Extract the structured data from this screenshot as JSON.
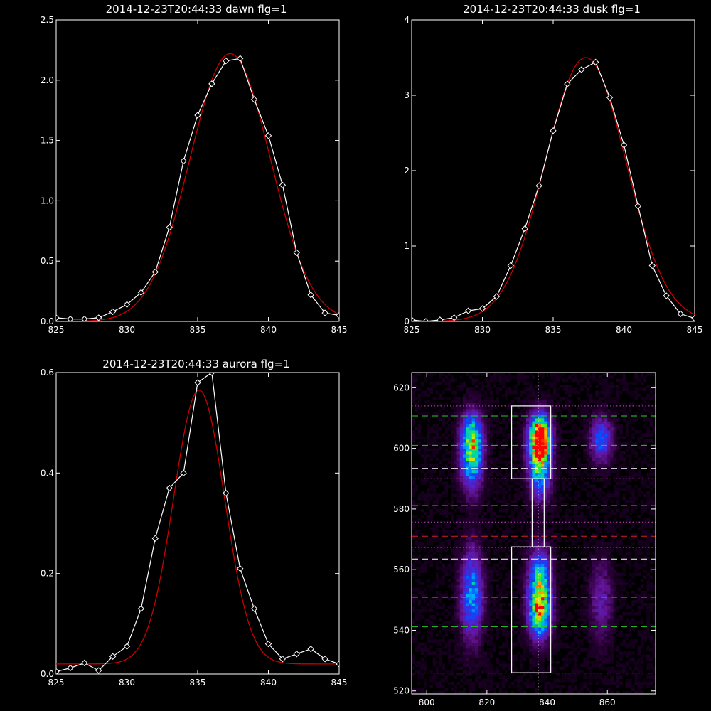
{
  "colors": {
    "background": "#000000",
    "axes": "#ffffff",
    "data_line": "#ffffff",
    "fit_line": "#cc0000",
    "green_dash": "#22cc22",
    "red_dash": "#cc2222",
    "white_dash": "#ffffff",
    "magenta_dot": "#cc44cc"
  },
  "chart_data": [
    {
      "id": "dawn",
      "type": "line",
      "title": "2014-12-23T20:44:33 dawn flg=1",
      "xlim": [
        825,
        845
      ],
      "ylim": [
        0,
        2.5
      ],
      "xticks": [
        "825",
        "830",
        "835",
        "840",
        "845"
      ],
      "yticks": [
        "0.0",
        "0.5",
        "1.0",
        "1.5",
        "2.0",
        "2.5"
      ],
      "series": [
        {
          "role": "data",
          "x": [
            825,
            826,
            827,
            828,
            829,
            830,
            831,
            832,
            833,
            834,
            835,
            836,
            837,
            838,
            839,
            840,
            841,
            842,
            843,
            844,
            845
          ],
          "y": [
            0.03,
            0.02,
            0.02,
            0.03,
            0.08,
            0.14,
            0.24,
            0.41,
            0.78,
            1.33,
            1.71,
            1.97,
            2.16,
            2.18,
            1.84,
            1.54,
            1.13,
            0.57,
            0.22,
            0.07,
            0.05
          ]
        },
        {
          "role": "fit",
          "gaussian": {
            "amp": 2.22,
            "mu": 837.3,
            "sigma": 2.85,
            "offset": 0.0
          }
        }
      ]
    },
    {
      "id": "dusk",
      "type": "line",
      "title": "2014-12-23T20:44:33 dusk flg=1",
      "xlim": [
        825,
        845
      ],
      "ylim": [
        0,
        4
      ],
      "xticks": [
        "825",
        "830",
        "835",
        "840",
        "845"
      ],
      "yticks": [
        "0",
        "1",
        "2",
        "3",
        "4"
      ],
      "series": [
        {
          "role": "data",
          "x": [
            825,
            826,
            827,
            828,
            829,
            830,
            831,
            832,
            833,
            834,
            835,
            836,
            837,
            838,
            839,
            840,
            841,
            842,
            843,
            844,
            845
          ],
          "y": [
            0.02,
            0.0,
            0.02,
            0.05,
            0.14,
            0.17,
            0.33,
            0.74,
            1.23,
            1.8,
            2.53,
            3.15,
            3.34,
            3.44,
            2.97,
            2.34,
            1.53,
            0.74,
            0.34,
            0.1,
            0.04
          ]
        },
        {
          "role": "fit",
          "gaussian": {
            "amp": 3.5,
            "mu": 837.3,
            "sigma": 2.85,
            "offset": 0.0
          }
        }
      ]
    },
    {
      "id": "aurora",
      "type": "line",
      "title": "2014-12-23T20:44:33 aurora flg=1",
      "xlim": [
        825,
        845
      ],
      "ylim": [
        0,
        0.6
      ],
      "xticks": [
        "825",
        "830",
        "835",
        "840",
        "845"
      ],
      "yticks": [
        "0.0",
        "0.2",
        "0.4",
        "0.6"
      ],
      "series": [
        {
          "role": "data",
          "x": [
            825,
            826,
            827,
            828,
            829,
            830,
            831,
            832,
            833,
            834,
            835,
            836,
            837,
            838,
            839,
            840,
            841,
            842,
            843,
            844,
            845
          ],
          "y": [
            0.005,
            0.012,
            0.022,
            0.007,
            0.035,
            0.055,
            0.13,
            0.27,
            0.37,
            0.4,
            0.58,
            0.6,
            0.36,
            0.21,
            0.13,
            0.06,
            0.03,
            0.04,
            0.05,
            0.03,
            0.02
          ]
        },
        {
          "role": "fit",
          "gaussian": {
            "amp": 0.545,
            "mu": 835.1,
            "sigma": 1.8,
            "offset": 0.02
          }
        }
      ]
    },
    {
      "id": "image",
      "type": "heatmap",
      "title": "",
      "xlim": [
        795,
        876
      ],
      "ylim": [
        519,
        625
      ],
      "xticks": [
        "800",
        "820",
        "840",
        "860"
      ],
      "yticks": [
        "520",
        "540",
        "560",
        "580",
        "600",
        "620"
      ],
      "vertical_dotted_x": 837,
      "blobs": [
        {
          "x": 815,
          "y": 603,
          "sx": 2.5,
          "sy": 6,
          "amp": 0.68
        },
        {
          "x": 815,
          "y": 593,
          "sx": 2.5,
          "sy": 6,
          "amp": 0.38
        },
        {
          "x": 837.5,
          "y": 604,
          "sx": 2.4,
          "sy": 5,
          "amp": 1.0
        },
        {
          "x": 837.5,
          "y": 594,
          "sx": 2.5,
          "sy": 7,
          "amp": 0.62
        },
        {
          "x": 858,
          "y": 603,
          "sx": 2.5,
          "sy": 5,
          "amp": 0.42
        },
        {
          "x": 815,
          "y": 552,
          "sx": 2.5,
          "sy": 10,
          "amp": 0.5
        },
        {
          "x": 837.5,
          "y": 546,
          "sx": 2.5,
          "sy": 6,
          "amp": 0.72
        },
        {
          "x": 837.5,
          "y": 557,
          "sx": 2.5,
          "sy": 7,
          "amp": 0.55
        },
        {
          "x": 858,
          "y": 550,
          "sx": 2.5,
          "sy": 9,
          "amp": 0.22
        }
      ],
      "hlines": [
        {
          "y": 614.0,
          "style": "dotted",
          "color": "magenta"
        },
        {
          "y": 610.7,
          "style": "dashed",
          "color": "green"
        },
        {
          "y": 601.0,
          "style": "dashed",
          "color": "green"
        },
        {
          "y": 593.4,
          "style": "dashed",
          "color": "white"
        },
        {
          "y": 590.0,
          "style": "dotted",
          "color": "magenta"
        },
        {
          "y": 581.2,
          "style": "dashed",
          "color": "red"
        },
        {
          "y": 575.7,
          "style": "dotted",
          "color": "magenta"
        },
        {
          "y": 571.0,
          "style": "dashed",
          "color": "red"
        },
        {
          "y": 567.3,
          "style": "dotted",
          "color": "magenta"
        },
        {
          "y": 563.5,
          "style": "dashed",
          "color": "white"
        },
        {
          "y": 550.9,
          "style": "dashed",
          "color": "green"
        },
        {
          "y": 541.2,
          "style": "dashed",
          "color": "green"
        },
        {
          "y": 525.9,
          "style": "dotted",
          "color": "magenta"
        }
      ],
      "boxes": [
        {
          "x0": 828.2,
          "x1": 841.2,
          "y0": 590.0,
          "y1": 614.0
        },
        {
          "x0": 828.2,
          "x1": 841.2,
          "y0": 526.0,
          "y1": 567.5
        },
        {
          "x0": 835.0,
          "x1": 839.0,
          "y0": 567.5,
          "y1": 590.0
        }
      ]
    }
  ]
}
